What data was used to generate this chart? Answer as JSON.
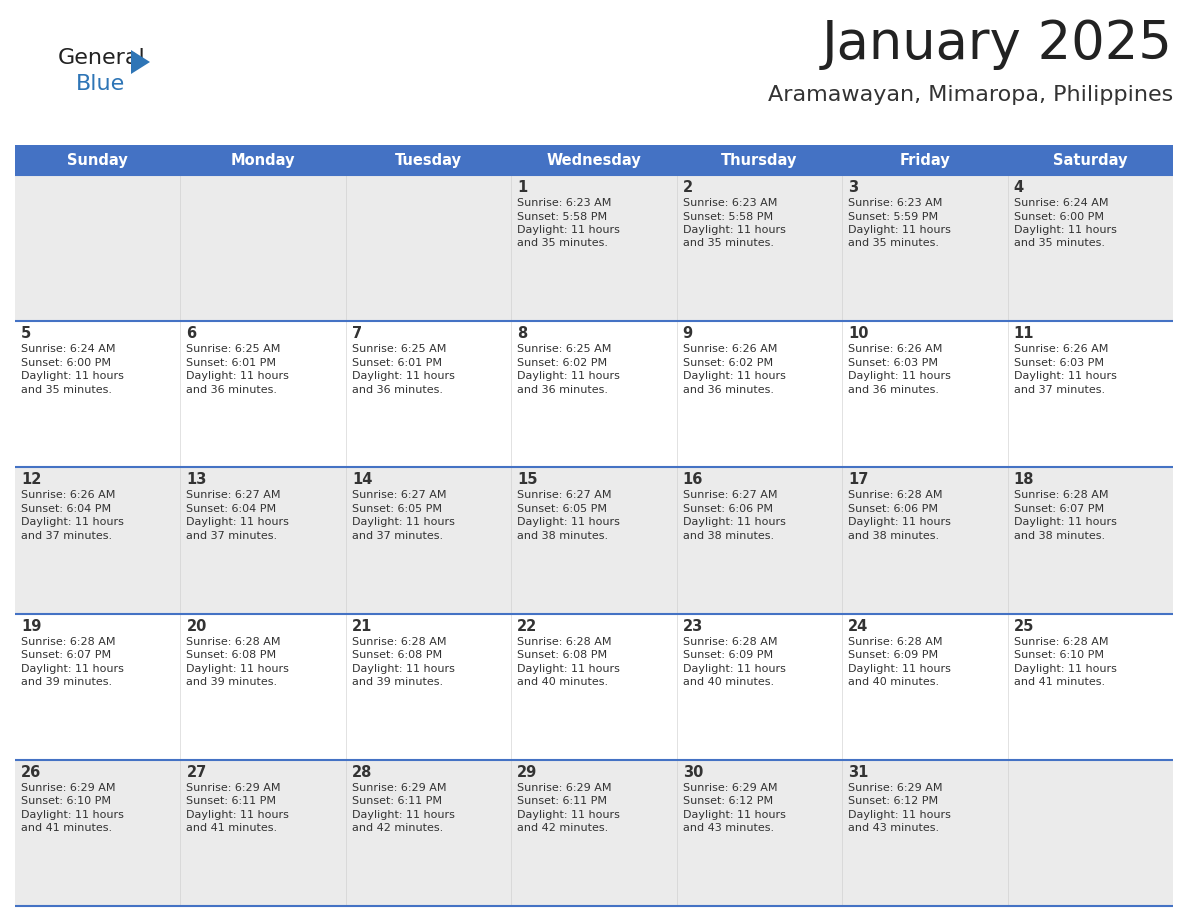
{
  "title": "January 2025",
  "subtitle": "Aramawayan, Mimaropa, Philippines",
  "days_of_week": [
    "Sunday",
    "Monday",
    "Tuesday",
    "Wednesday",
    "Thursday",
    "Friday",
    "Saturday"
  ],
  "header_bg": "#4472C4",
  "header_text_color": "#FFFFFF",
  "separator_color": "#4472C4",
  "title_color": "#222222",
  "subtitle_color": "#333333",
  "cell_bg_shaded": "#EBEBEB",
  "cell_bg_white": "#FFFFFF",
  "cell_text_color": "#333333",
  "logo_text_color": "#222222",
  "logo_blue_color": "#2E75B6",
  "calendar": [
    [
      {
        "day": 0,
        "sunrise": "",
        "sunset": "",
        "daylight_h": "",
        "daylight_m": ""
      },
      {
        "day": 0,
        "sunrise": "",
        "sunset": "",
        "daylight_h": "",
        "daylight_m": ""
      },
      {
        "day": 0,
        "sunrise": "",
        "sunset": "",
        "daylight_h": "",
        "daylight_m": ""
      },
      {
        "day": 1,
        "sunrise": "6:23 AM",
        "sunset": "5:58 PM",
        "daylight_h": "11 hours",
        "daylight_m": "35 minutes."
      },
      {
        "day": 2,
        "sunrise": "6:23 AM",
        "sunset": "5:58 PM",
        "daylight_h": "11 hours",
        "daylight_m": "35 minutes."
      },
      {
        "day": 3,
        "sunrise": "6:23 AM",
        "sunset": "5:59 PM",
        "daylight_h": "11 hours",
        "daylight_m": "35 minutes."
      },
      {
        "day": 4,
        "sunrise": "6:24 AM",
        "sunset": "6:00 PM",
        "daylight_h": "11 hours",
        "daylight_m": "35 minutes."
      }
    ],
    [
      {
        "day": 5,
        "sunrise": "6:24 AM",
        "sunset": "6:00 PM",
        "daylight_h": "11 hours",
        "daylight_m": "35 minutes."
      },
      {
        "day": 6,
        "sunrise": "6:25 AM",
        "sunset": "6:01 PM",
        "daylight_h": "11 hours",
        "daylight_m": "36 minutes."
      },
      {
        "day": 7,
        "sunrise": "6:25 AM",
        "sunset": "6:01 PM",
        "daylight_h": "11 hours",
        "daylight_m": "36 minutes."
      },
      {
        "day": 8,
        "sunrise": "6:25 AM",
        "sunset": "6:02 PM",
        "daylight_h": "11 hours",
        "daylight_m": "36 minutes."
      },
      {
        "day": 9,
        "sunrise": "6:26 AM",
        "sunset": "6:02 PM",
        "daylight_h": "11 hours",
        "daylight_m": "36 minutes."
      },
      {
        "day": 10,
        "sunrise": "6:26 AM",
        "sunset": "6:03 PM",
        "daylight_h": "11 hours",
        "daylight_m": "36 minutes."
      },
      {
        "day": 11,
        "sunrise": "6:26 AM",
        "sunset": "6:03 PM",
        "daylight_h": "11 hours",
        "daylight_m": "37 minutes."
      }
    ],
    [
      {
        "day": 12,
        "sunrise": "6:26 AM",
        "sunset": "6:04 PM",
        "daylight_h": "11 hours",
        "daylight_m": "37 minutes."
      },
      {
        "day": 13,
        "sunrise": "6:27 AM",
        "sunset": "6:04 PM",
        "daylight_h": "11 hours",
        "daylight_m": "37 minutes."
      },
      {
        "day": 14,
        "sunrise": "6:27 AM",
        "sunset": "6:05 PM",
        "daylight_h": "11 hours",
        "daylight_m": "37 minutes."
      },
      {
        "day": 15,
        "sunrise": "6:27 AM",
        "sunset": "6:05 PM",
        "daylight_h": "11 hours",
        "daylight_m": "38 minutes."
      },
      {
        "day": 16,
        "sunrise": "6:27 AM",
        "sunset": "6:06 PM",
        "daylight_h": "11 hours",
        "daylight_m": "38 minutes."
      },
      {
        "day": 17,
        "sunrise": "6:28 AM",
        "sunset": "6:06 PM",
        "daylight_h": "11 hours",
        "daylight_m": "38 minutes."
      },
      {
        "day": 18,
        "sunrise": "6:28 AM",
        "sunset": "6:07 PM",
        "daylight_h": "11 hours",
        "daylight_m": "38 minutes."
      }
    ],
    [
      {
        "day": 19,
        "sunrise": "6:28 AM",
        "sunset": "6:07 PM",
        "daylight_h": "11 hours",
        "daylight_m": "39 minutes."
      },
      {
        "day": 20,
        "sunrise": "6:28 AM",
        "sunset": "6:08 PM",
        "daylight_h": "11 hours",
        "daylight_m": "39 minutes."
      },
      {
        "day": 21,
        "sunrise": "6:28 AM",
        "sunset": "6:08 PM",
        "daylight_h": "11 hours",
        "daylight_m": "39 minutes."
      },
      {
        "day": 22,
        "sunrise": "6:28 AM",
        "sunset": "6:08 PM",
        "daylight_h": "11 hours",
        "daylight_m": "40 minutes."
      },
      {
        "day": 23,
        "sunrise": "6:28 AM",
        "sunset": "6:09 PM",
        "daylight_h": "11 hours",
        "daylight_m": "40 minutes."
      },
      {
        "day": 24,
        "sunrise": "6:28 AM",
        "sunset": "6:09 PM",
        "daylight_h": "11 hours",
        "daylight_m": "40 minutes."
      },
      {
        "day": 25,
        "sunrise": "6:28 AM",
        "sunset": "6:10 PM",
        "daylight_h": "11 hours",
        "daylight_m": "41 minutes."
      }
    ],
    [
      {
        "day": 26,
        "sunrise": "6:29 AM",
        "sunset": "6:10 PM",
        "daylight_h": "11 hours",
        "daylight_m": "41 minutes."
      },
      {
        "day": 27,
        "sunrise": "6:29 AM",
        "sunset": "6:11 PM",
        "daylight_h": "11 hours",
        "daylight_m": "41 minutes."
      },
      {
        "day": 28,
        "sunrise": "6:29 AM",
        "sunset": "6:11 PM",
        "daylight_h": "11 hours",
        "daylight_m": "42 minutes."
      },
      {
        "day": 29,
        "sunrise": "6:29 AM",
        "sunset": "6:11 PM",
        "daylight_h": "11 hours",
        "daylight_m": "42 minutes."
      },
      {
        "day": 30,
        "sunrise": "6:29 AM",
        "sunset": "6:12 PM",
        "daylight_h": "11 hours",
        "daylight_m": "43 minutes."
      },
      {
        "day": 31,
        "sunrise": "6:29 AM",
        "sunset": "6:12 PM",
        "daylight_h": "11 hours",
        "daylight_m": "43 minutes."
      },
      {
        "day": 0,
        "sunrise": "",
        "sunset": "",
        "daylight_h": "",
        "daylight_m": ""
      }
    ]
  ]
}
